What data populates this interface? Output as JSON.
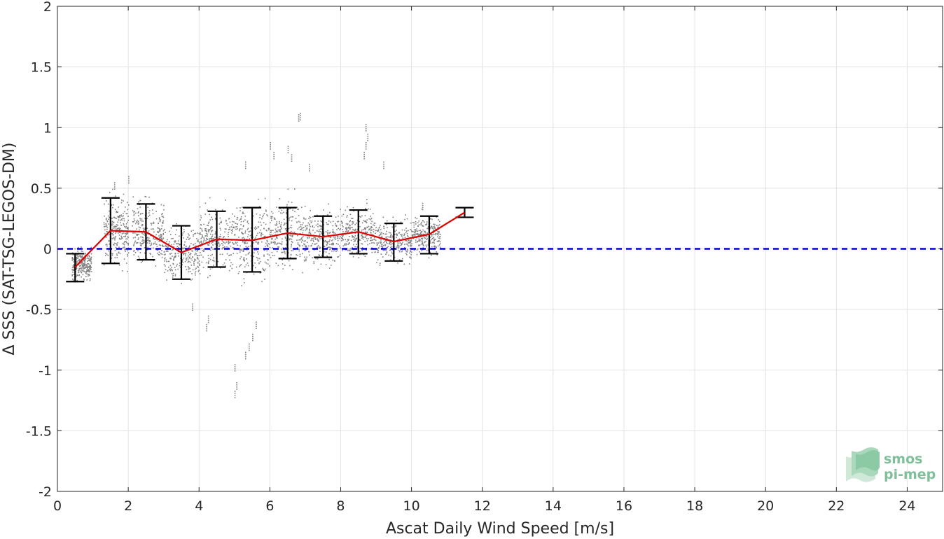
{
  "chart_data": {
    "type": "scatter",
    "title": "",
    "xlabel": "Ascat Daily Wind Speed [m/s]",
    "ylabel": "Δ SSS (SAT-TSG-LEGOS-DM)",
    "xlim": [
      0,
      25
    ],
    "ylim": [
      -2,
      2
    ],
    "xticks": [
      0,
      2,
      4,
      6,
      8,
      10,
      12,
      14,
      16,
      18,
      20,
      22,
      24
    ],
    "yticks": [
      -2,
      -1.5,
      -1,
      -0.5,
      0,
      0.5,
      1,
      1.5,
      2
    ],
    "grid": true,
    "zero_line": {
      "y": 0,
      "color": "#0000cc",
      "style": "dashed"
    },
    "mean_line": {
      "color": "#e00000",
      "x": [
        0.5,
        1.5,
        2.5,
        3.5,
        4.5,
        5.5,
        6.5,
        7.5,
        8.5,
        9.5,
        10.5,
        11.5
      ],
      "y": [
        -0.15,
        0.15,
        0.14,
        -0.03,
        0.08,
        0.07,
        0.13,
        0.1,
        0.14,
        0.06,
        0.12,
        0.3
      ]
    },
    "error_bars": {
      "color": "#000000",
      "x": [
        0.5,
        1.5,
        2.5,
        3.5,
        4.5,
        5.5,
        6.5,
        7.5,
        8.5,
        9.5,
        10.5,
        11.5
      ],
      "low": [
        -0.27,
        -0.12,
        -0.09,
        -0.25,
        -0.15,
        -0.19,
        -0.08,
        -0.07,
        -0.04,
        -0.1,
        -0.04,
        0.26
      ],
      "high": [
        -0.04,
        0.42,
        0.37,
        0.19,
        0.31,
        0.34,
        0.34,
        0.27,
        0.32,
        0.21,
        0.27,
        0.34
      ]
    },
    "scatter": {
      "color": "#808080",
      "bins": [
        {
          "x": [
            0.4,
            0.95
          ],
          "center": -0.12,
          "spread": 0.1
        },
        {
          "x": [
            1.3,
            2.0
          ],
          "center": 0.15,
          "spread": 0.22
        },
        {
          "x": [
            2.1,
            3.0
          ],
          "center": 0.14,
          "spread": 0.2
        },
        {
          "x": [
            3.0,
            4.0
          ],
          "center": -0.03,
          "spread": 0.18
        },
        {
          "x": [
            4.0,
            5.0
          ],
          "center": 0.08,
          "spread": 0.2
        },
        {
          "x": [
            5.0,
            6.0
          ],
          "center": 0.07,
          "spread": 0.24
        },
        {
          "x": [
            6.0,
            7.0
          ],
          "center": 0.13,
          "spread": 0.22
        },
        {
          "x": [
            7.0,
            8.0
          ],
          "center": 0.1,
          "spread": 0.17
        },
        {
          "x": [
            8.0,
            9.0
          ],
          "center": 0.14,
          "spread": 0.16
        },
        {
          "x": [
            9.0,
            10.0
          ],
          "center": 0.06,
          "spread": 0.14
        },
        {
          "x": [
            10.0,
            10.8
          ],
          "center": 0.12,
          "spread": 0.12
        }
      ],
      "outliers": [
        {
          "x": 5.0,
          "y": -1.17
        },
        {
          "x": 5.05,
          "y": -1.1
        },
        {
          "x": 5.0,
          "y": -0.95
        },
        {
          "x": 5.3,
          "y": -0.85
        },
        {
          "x": 5.4,
          "y": -0.78
        },
        {
          "x": 5.5,
          "y": -0.7
        },
        {
          "x": 5.6,
          "y": -0.6
        },
        {
          "x": 4.2,
          "y": -0.62
        },
        {
          "x": 4.25,
          "y": -0.55
        },
        {
          "x": 6.8,
          "y": 1.11
        },
        {
          "x": 6.85,
          "y": 1.12
        },
        {
          "x": 8.7,
          "y": 1.03
        },
        {
          "x": 8.75,
          "y": 0.95
        },
        {
          "x": 8.7,
          "y": 0.88
        },
        {
          "x": 8.65,
          "y": 0.8
        },
        {
          "x": 6.0,
          "y": 0.88
        },
        {
          "x": 6.1,
          "y": 0.8
        },
        {
          "x": 5.3,
          "y": 0.72
        },
        {
          "x": 6.5,
          "y": 0.85
        },
        {
          "x": 6.6,
          "y": 0.78
        },
        {
          "x": 7.1,
          "y": 0.7
        },
        {
          "x": 2.0,
          "y": 0.6
        },
        {
          "x": 1.6,
          "y": 0.55
        },
        {
          "x": 3.8,
          "y": -0.45
        },
        {
          "x": 9.2,
          "y": 0.72
        },
        {
          "x": 10.3,
          "y": 0.38
        }
      ]
    }
  },
  "logo": {
    "line1": "smos",
    "line2": "pi-mep"
  }
}
